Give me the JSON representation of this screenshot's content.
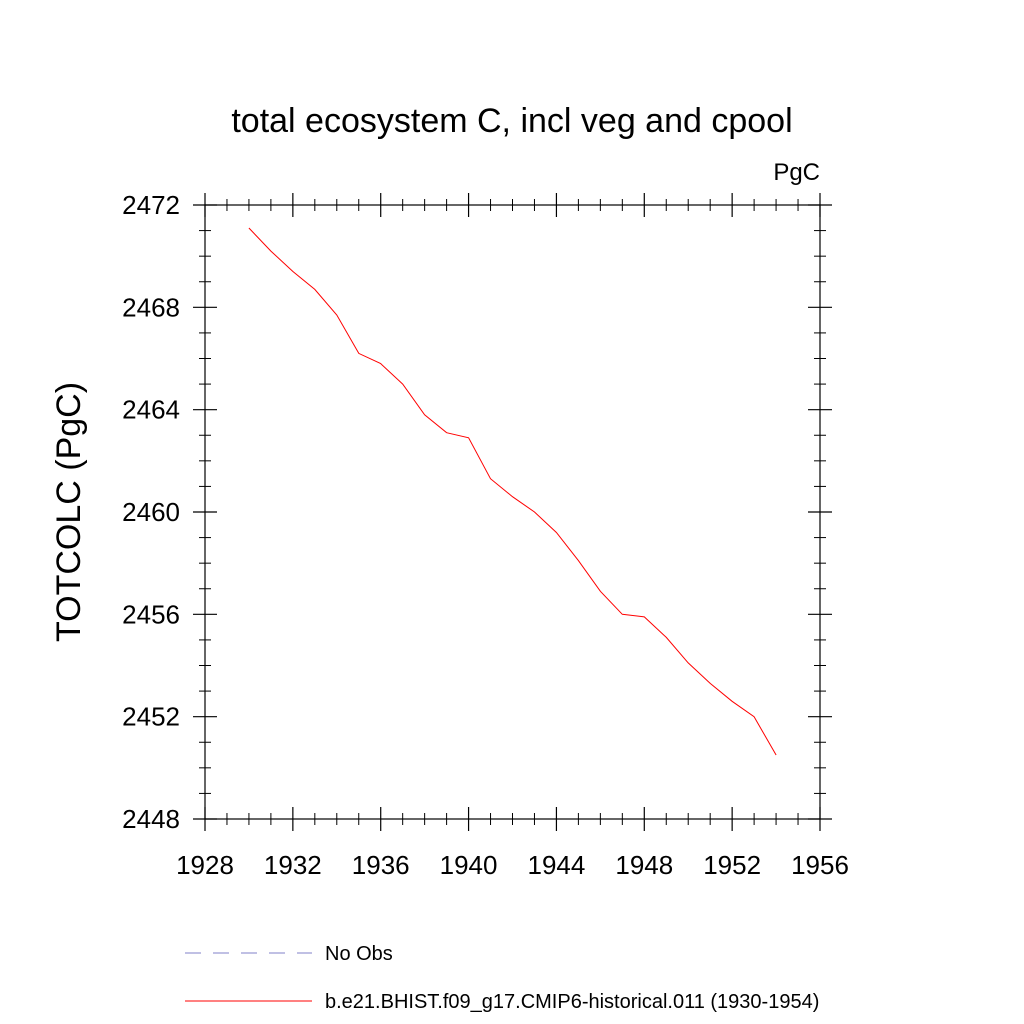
{
  "chart_data": {
    "type": "line",
    "title": "total ecosystem C, incl veg and cpool",
    "units_label": "PgC",
    "ylabel": "TOTCOLC  (PgC)",
    "xlabel": "",
    "xlim": [
      1928,
      1956
    ],
    "ylim": [
      2448,
      2472
    ],
    "x_ticks": [
      1928,
      1932,
      1936,
      1940,
      1944,
      1948,
      1952,
      1956
    ],
    "y_ticks": [
      2448,
      2452,
      2456,
      2460,
      2464,
      2468,
      2472
    ],
    "x_minor_step": 1,
    "y_minor_step": 1,
    "grid": false,
    "series": [
      {
        "name": "b.e21.BHIST.f09_g17.CMIP6-historical.011 (1930-1954)",
        "color": "#ff0000",
        "style": "solid",
        "x": [
          1930,
          1931,
          1932,
          1933,
          1934,
          1935,
          1936,
          1937,
          1938,
          1939,
          1940,
          1941,
          1942,
          1943,
          1944,
          1945,
          1946,
          1947,
          1948,
          1949,
          1950,
          1951,
          1952,
          1953,
          1954
        ],
        "y": [
          2471.1,
          2470.2,
          2469.4,
          2468.7,
          2467.7,
          2466.2,
          2465.8,
          2465.0,
          2463.8,
          2463.1,
          2462.9,
          2461.3,
          2460.6,
          2460.0,
          2459.2,
          2458.1,
          2456.9,
          2456.0,
          2455.9,
          2455.1,
          2454.1,
          2453.3,
          2452.6,
          2452.0,
          2450.5
        ]
      }
    ],
    "legend": [
      {
        "label": "No Obs",
        "color": "#8080c8",
        "style": "dashed"
      },
      {
        "label": "b.e21.BHIST.f09_g17.CMIP6-historical.011 (1930-1954)",
        "color": "#ff0000",
        "style": "solid"
      }
    ],
    "legend_placement": "bottom"
  }
}
